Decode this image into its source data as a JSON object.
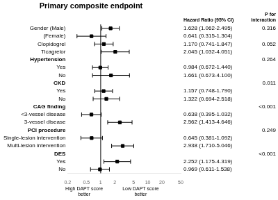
{
  "chart_data": {
    "type": "forest",
    "title": "Primary composite endpoint",
    "columns": [
      "Hazard Ratio (95% CI)",
      "P for\ninteraction"
    ],
    "categories": [
      "Gender (Male)",
      "(Female)",
      "Clopidogrel",
      "Ticagrelor",
      "Hypertension",
      "Yes",
      "No",
      "CKD",
      "Yes",
      "No",
      "CAG finding",
      "<3-vessel disease",
      "3-vessel disease",
      "PCI procedure",
      "Single-lesion intervention",
      "Multi-lesion intervention",
      "DES",
      "Yes",
      "No"
    ],
    "values": [
      1.628,
      0.641,
      1.17,
      2.045,
      null,
      0.984,
      1.661,
      null,
      1.157,
      1.322,
      null,
      0.638,
      2.562,
      null,
      0.645,
      2.938,
      null,
      2.252,
      0.969
    ],
    "lower": [
      1.062,
      0.315,
      0.741,
      1.032,
      null,
      0.672,
      0.673,
      null,
      0.748,
      0.694,
      null,
      0.395,
      1.413,
      null,
      0.381,
      1.71,
      null,
      1.175,
      0.611
    ],
    "upper": [
      2.495,
      1.304,
      1.847,
      4.051,
      null,
      1.44,
      4.1,
      null,
      1.79,
      2.518,
      null,
      1.032,
      4.646,
      null,
      1.092,
      5.046,
      null,
      4.319,
      1.538
    ],
    "ci_labels": [
      "1.628 (1.062-2.495)",
      "0.641 (0.315-1.304)",
      "1.170 (0.741-1.847)",
      "2.045 (1.032-4.051)",
      null,
      "0.984 (0.672-1.440)",
      "1.661 (0.673-4.100)",
      null,
      "1.157 (0.748-1.790)",
      "1.322 (0.694-2.518)",
      null,
      "0.638 (0.395-1.032)",
      "2.562 (1.413-4.646)",
      null,
      "0.645 (0.381-1.092)",
      "2.938 (1.710-5.046)",
      null,
      "2.252 (1.175-4.319)",
      "0.969 (0.611-1.538)"
    ],
    "p_values": [
      "0.316",
      null,
      "0.052",
      null,
      "0.264",
      null,
      null,
      "0.011",
      null,
      null,
      "<0.001",
      null,
      null,
      "0.249",
      null,
      null,
      "<0.001",
      null,
      null
    ],
    "reference_line": 1,
    "annotations": [
      "High DAPT score\nbetter",
      "Low DAPT score\nbetter"
    ],
    "log": "x",
    "xlim": [
      0.2,
      50
    ],
    "xticks": [
      0.2,
      0.5,
      1,
      2,
      5,
      10,
      20,
      50
    ],
    "grid": false,
    "color": "black"
  }
}
